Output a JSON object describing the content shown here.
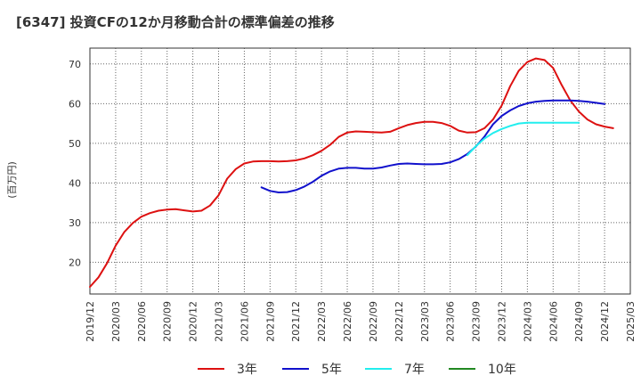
{
  "chart_data": {
    "type": "line",
    "title": "[6347]  投資CFの12か月移動合計の標準偏差の推移",
    "ylabel": "(百万円)",
    "xlabel": "",
    "ylim": [
      12,
      74
    ],
    "y_ticks": [
      20,
      30,
      40,
      50,
      60,
      70
    ],
    "x_tick_labels": [
      "2019/12",
      "2020/03",
      "2020/06",
      "2020/09",
      "2020/12",
      "2021/03",
      "2021/06",
      "2021/09",
      "2021/12",
      "2022/03",
      "2022/06",
      "2022/09",
      "2022/12",
      "2023/03",
      "2023/06",
      "2023/09",
      "2023/12",
      "2024/03",
      "2024/06",
      "2024/09",
      "2024/12",
      "2025/03"
    ],
    "grid": true,
    "legend_position": "bottom",
    "colors": {
      "3y": "#dd1111",
      "5y": "#1111cc",
      "7y": "#22eeee",
      "10y": "#228822"
    },
    "series": [
      {
        "key": "3y",
        "name": "3年",
        "start_month": "2019/12",
        "values": [
          13.8,
          16.2,
          19.8,
          24.2,
          27.6,
          29.9,
          31.5,
          32.4,
          33.0,
          33.3,
          33.4,
          33.1,
          32.8,
          33.0,
          34.3,
          36.9,
          41.1,
          43.5,
          44.9,
          45.4,
          45.5,
          45.5,
          45.4,
          45.5,
          45.7,
          46.2,
          47.0,
          48.1,
          49.6,
          51.6,
          52.7,
          53.0,
          52.9,
          52.8,
          52.7,
          52.9,
          53.8,
          54.6,
          55.1,
          55.4,
          55.4,
          55.1,
          54.4,
          53.2,
          52.7,
          52.8,
          53.8,
          56.0,
          59.5,
          64.4,
          68.3,
          70.5,
          71.4,
          71.0,
          69.0,
          64.7,
          60.8,
          58.0,
          56.0,
          54.8,
          54.2,
          53.8
        ]
      },
      {
        "key": "5y",
        "name": "5年",
        "start_month": "2021/08",
        "values": [
          38.9,
          38.0,
          37.6,
          37.7,
          38.2,
          39.1,
          40.3,
          41.8,
          42.9,
          43.6,
          43.8,
          43.8,
          43.6,
          43.6,
          43.9,
          44.4,
          44.8,
          44.9,
          44.8,
          44.7,
          44.7,
          44.8,
          45.2,
          46.0,
          47.3,
          49.2,
          51.7,
          54.8,
          56.9,
          58.3,
          59.4,
          60.1,
          60.5,
          60.7,
          60.8,
          60.8,
          60.8,
          60.7,
          60.5,
          60.2,
          59.9
        ]
      },
      {
        "key": "7y",
        "name": "7年",
        "start_month": "2023/08",
        "values": [
          47.0,
          49.3,
          51.2,
          52.6,
          53.6,
          54.4,
          55.0,
          55.2,
          55.2,
          55.2,
          55.2,
          55.2,
          55.2,
          55.2
        ]
      },
      {
        "key": "10y",
        "name": "10年",
        "start_month": "",
        "values": []
      }
    ]
  }
}
